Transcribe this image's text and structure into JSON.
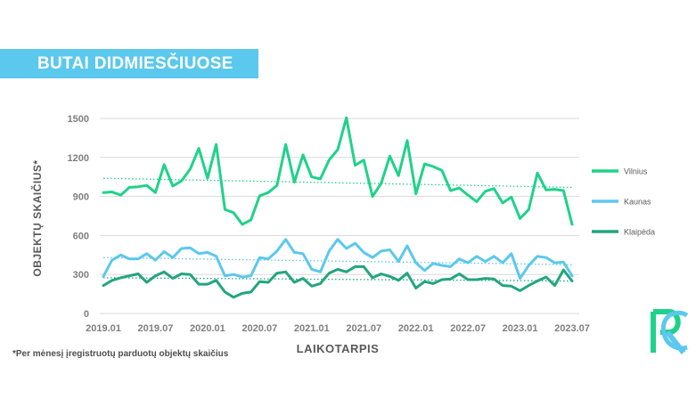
{
  "banner": {
    "title": "BUTAI DIDMIESČIUOSE"
  },
  "footnote": "*Per mėnesį įregistruotų parduotų objektų skaičius",
  "colors": {
    "vilnius": "#1fd28a",
    "kaunas": "#5bc8ee",
    "klaipeda": "#23a57e",
    "grid": "#d9d9d9",
    "axis_text": "#7f7f7f",
    "banner": "#5bc8ee"
  },
  "logo": {
    "icon": "rc-logo-icon"
  },
  "chart_data": {
    "type": "line",
    "xlabel": "LAIKOTARPIS",
    "ylabel": "OBJEKTŲ SKAIČIUS*",
    "ylim": [
      0,
      1500
    ],
    "yticks": [
      0,
      300,
      600,
      900,
      1200,
      1500
    ],
    "xticks": [
      "2019.01",
      "2019.07",
      "2020.01",
      "2020.07",
      "2021.01",
      "2021.07",
      "2022.01",
      "2022.07",
      "2023.01",
      "2023.07"
    ],
    "x_start": "2019.01",
    "x_end": "2023.07",
    "grid": true,
    "legend_position": "right",
    "trendlines": "dotted linear trend per series",
    "series": [
      {
        "name": "Vilnius",
        "values": [
          930,
          935,
          910,
          970,
          975,
          985,
          930,
          1145,
          980,
          1020,
          1110,
          1270,
          1040,
          1300,
          800,
          775,
          685,
          720,
          905,
          930,
          985,
          1300,
          1010,
          1220,
          1050,
          1035,
          1180,
          1260,
          1505,
          1140,
          1180,
          900,
          1000,
          1210,
          1060,
          1330,
          920,
          1150,
          1130,
          1100,
          945,
          965,
          910,
          860,
          940,
          960,
          850,
          895,
          730,
          800,
          1080,
          950,
          955,
          945,
          685
        ],
        "trend": [
          1040,
          970
        ]
      },
      {
        "name": "Kaunas",
        "values": [
          285,
          410,
          450,
          420,
          420,
          460,
          410,
          475,
          430,
          500,
          505,
          460,
          470,
          440,
          290,
          300,
          280,
          290,
          430,
          420,
          480,
          570,
          470,
          460,
          340,
          320,
          480,
          570,
          500,
          540,
          470,
          430,
          480,
          490,
          400,
          520,
          390,
          330,
          385,
          370,
          360,
          420,
          390,
          440,
          400,
          440,
          390,
          460,
          270,
          370,
          440,
          430,
          390,
          395,
          290
        ],
        "trend": [
          430,
          375
        ]
      },
      {
        "name": "Klaipėda",
        "values": [
          215,
          255,
          275,
          290,
          305,
          240,
          290,
          320,
          270,
          305,
          300,
          225,
          225,
          255,
          165,
          125,
          155,
          165,
          245,
          240,
          310,
          320,
          240,
          270,
          210,
          230,
          310,
          340,
          320,
          360,
          360,
          275,
          305,
          285,
          255,
          310,
          195,
          245,
          230,
          260,
          265,
          305,
          260,
          260,
          270,
          265,
          215,
          210,
          175,
          215,
          250,
          280,
          215,
          335,
          250
        ],
        "trend": [
          275,
          250
        ]
      }
    ]
  }
}
